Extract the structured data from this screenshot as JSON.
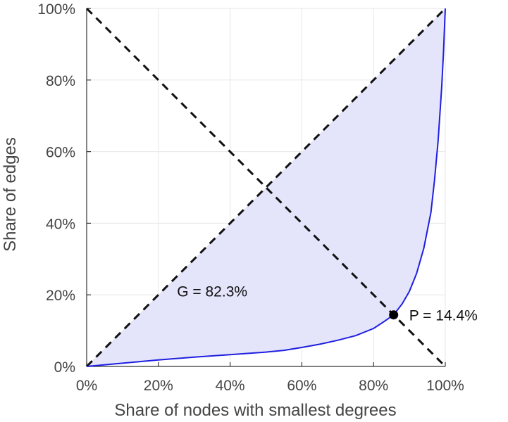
{
  "chart_data": {
    "type": "line",
    "title": "",
    "xlabel": "Share of nodes with smallest degrees",
    "ylabel": "Share of edges",
    "xlim": [
      0,
      100
    ],
    "ylim": [
      0,
      100
    ],
    "grid": true,
    "x_ticks": [
      0,
      20,
      40,
      60,
      80,
      100
    ],
    "y_ticks": [
      0,
      20,
      40,
      60,
      80,
      100
    ],
    "x_tick_labels": [
      "0%",
      "20%",
      "40%",
      "60%",
      "80%",
      "100%"
    ],
    "y_tick_labels": [
      "0%",
      "20%",
      "40%",
      "60%",
      "80%",
      "100%"
    ],
    "series": [
      {
        "name": "Lorenz curve",
        "color": "#1f1fe0",
        "fill": "#e4e4fb",
        "x": [
          0,
          10,
          20,
          30,
          40,
          50,
          55,
          60,
          65,
          70,
          75,
          80,
          83,
          85.6,
          88,
          90,
          92,
          94,
          96,
          97,
          98,
          99,
          99.5,
          100
        ],
        "y": [
          0,
          0.9,
          1.8,
          2.6,
          3.3,
          4.0,
          4.5,
          5.3,
          6.2,
          7.3,
          8.6,
          10.6,
          12.6,
          14.4,
          17.5,
          21,
          26,
          33,
          43,
          52,
          63,
          78,
          88,
          100
        ]
      }
    ],
    "reference_lines": [
      {
        "name": "diagonal",
        "x": [
          0,
          100
        ],
        "y": [
          0,
          100
        ],
        "style": "dashed",
        "color": "#111111"
      },
      {
        "name": "anti-diagonal",
        "x": [
          0,
          100
        ],
        "y": [
          100,
          0
        ],
        "style": "dashed",
        "color": "#111111"
      }
    ],
    "annotations": [
      {
        "name": "gini",
        "text": "G = 82.3%",
        "x": 35,
        "y": 19.5
      },
      {
        "name": "p-point",
        "text": "P = 14.4%",
        "x": 85.6,
        "y": 14.4,
        "marker": true
      }
    ]
  }
}
